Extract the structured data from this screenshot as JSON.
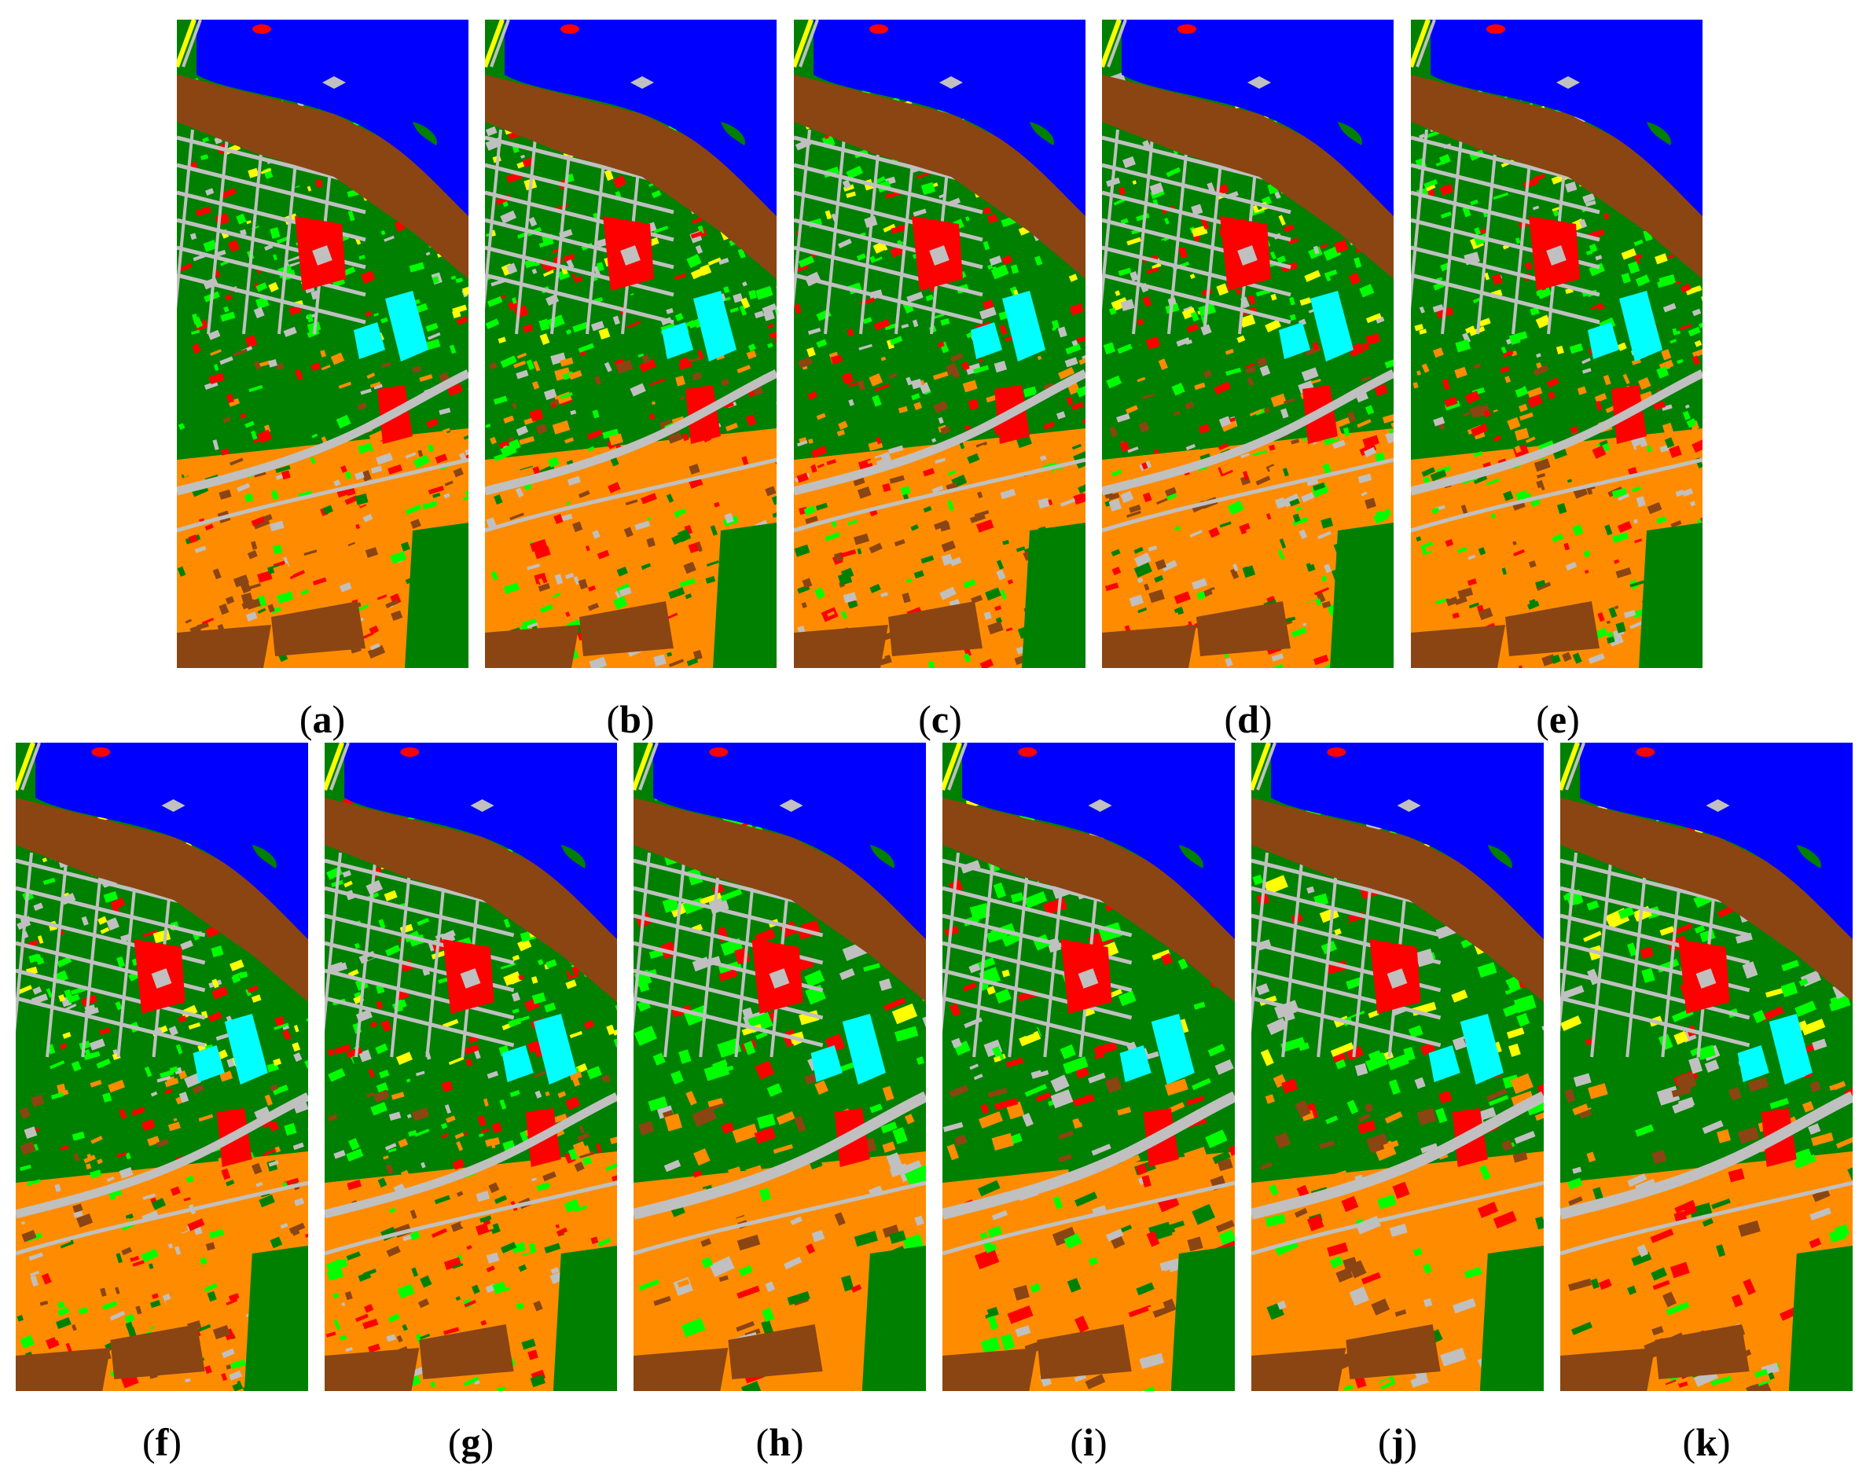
{
  "figure": {
    "panels": [
      {
        "id": "a",
        "label": "a"
      },
      {
        "id": "b",
        "label": "b"
      },
      {
        "id": "c",
        "label": "c"
      },
      {
        "id": "d",
        "label": "d"
      },
      {
        "id": "e",
        "label": "e"
      },
      {
        "id": "f",
        "label": "f"
      },
      {
        "id": "g",
        "label": "g"
      },
      {
        "id": "h",
        "label": "h"
      },
      {
        "id": "i",
        "label": "i"
      },
      {
        "id": "j",
        "label": "j"
      },
      {
        "id": "k",
        "label": "k"
      }
    ],
    "class_colors": {
      "water": "#0000ff",
      "trees": "#00ff00",
      "meadows": "#008000",
      "soil": "#8b4513",
      "asphalt": "#c0c0c0",
      "tiles": "#ff8c00",
      "bricks": "#ff0000",
      "bitumen": "#00ffff",
      "shadows": "#ffff00"
    }
  }
}
